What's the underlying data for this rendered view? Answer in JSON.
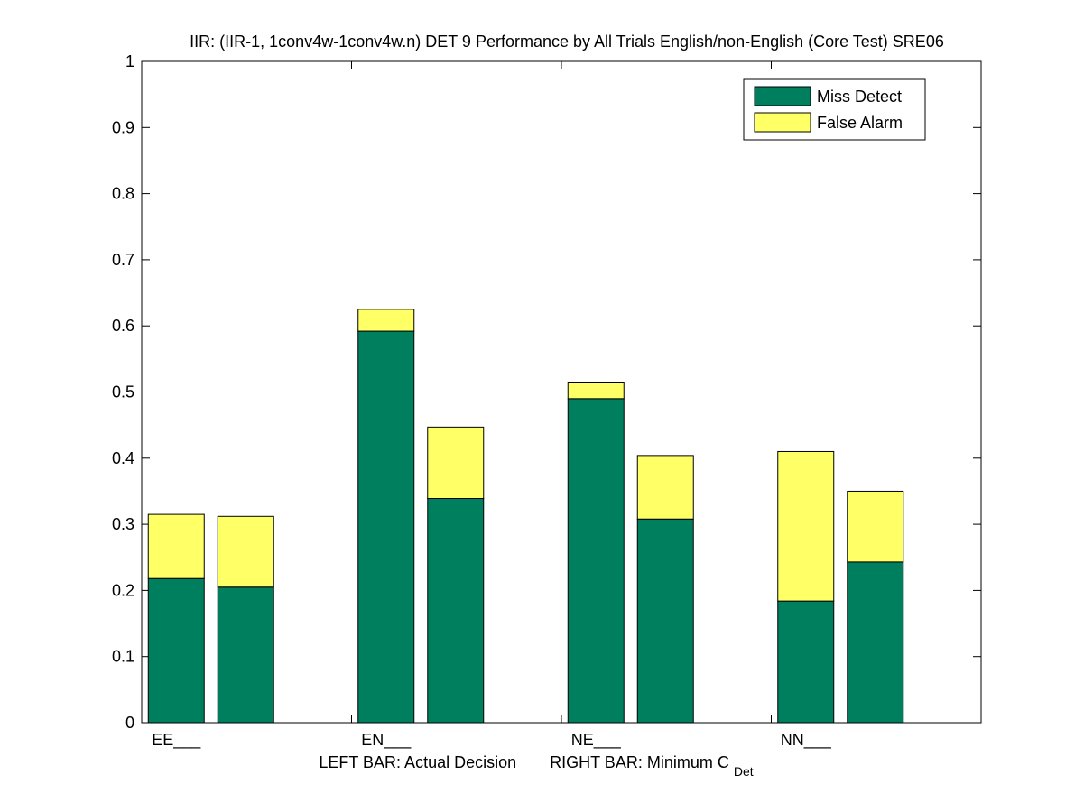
{
  "chart_data": {
    "type": "bar",
    "stacked": true,
    "title": "IIR: (IIR-1, 1conv4w-1conv4w.n) DET 9 Performance by All Trials English/non-English (Core Test) SRE06",
    "xlabel_left": "LEFT BAR: Actual Decision",
    "xlabel_right_prefix": "RIGHT BAR: Minimum C",
    "xlabel_right_subscript": "Det",
    "categories": [
      "EE___",
      "EN___",
      "NE___",
      "NN___"
    ],
    "bar_roles": [
      "Actual Decision",
      "Minimum C_Det"
    ],
    "ylim": [
      0,
      1
    ],
    "yticks": [
      "0",
      "0.1",
      "0.2",
      "0.3",
      "0.4",
      "0.5",
      "0.6",
      "0.7",
      "0.8",
      "0.9",
      "1"
    ],
    "grid": false,
    "legend_position": "top-right",
    "series": [
      {
        "name": "Miss Detect",
        "color": "#007f5f",
        "actual": [
          0.218,
          0.592,
          0.49,
          0.184
        ],
        "minimum": [
          0.205,
          0.339,
          0.308,
          0.243
        ]
      },
      {
        "name": "False Alarm",
        "color": "#ffff66",
        "actual": [
          0.097,
          0.033,
          0.025,
          0.226
        ],
        "minimum": [
          0.107,
          0.108,
          0.096,
          0.107
        ]
      }
    ]
  }
}
